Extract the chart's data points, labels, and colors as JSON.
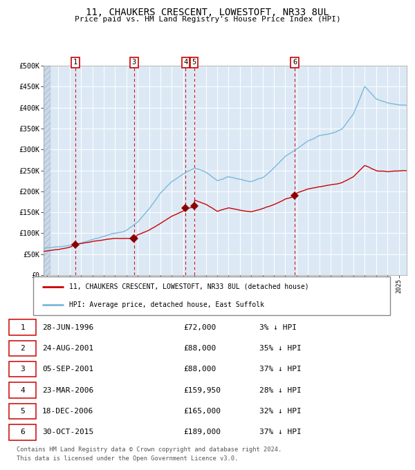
{
  "title": "11, CHAUKERS CRESCENT, LOWESTOFT, NR33 8UL",
  "subtitle": "Price paid vs. HM Land Registry's House Price Index (HPI)",
  "legend_line1": "11, CHAUKERS CRESCENT, LOWESTOFT, NR33 8UL (detached house)",
  "legend_line2": "HPI: Average price, detached house, East Suffolk",
  "footer1": "Contains HM Land Registry data © Crown copyright and database right 2024.",
  "footer2": "This data is licensed under the Open Government Licence v3.0.",
  "sales": [
    {
      "label": "1",
      "date_num": 1996.49,
      "price": 72000
    },
    {
      "label": "2",
      "date_num": 2001.64,
      "price": 88000
    },
    {
      "label": "3",
      "date_num": 2001.68,
      "price": 88000
    },
    {
      "label": "4",
      "date_num": 2006.22,
      "price": 159950
    },
    {
      "label": "5",
      "date_num": 2006.96,
      "price": 165000
    },
    {
      "label": "6",
      "date_num": 2015.83,
      "price": 189000
    }
  ],
  "vlines": [
    1996.49,
    2001.68,
    2006.22,
    2006.96,
    2015.83
  ],
  "table_sales": [
    {
      "label": "1",
      "date": "28-JUN-1996",
      "price": "£72,000",
      "pct": "3% ↓ HPI"
    },
    {
      "label": "2",
      "date": "24-AUG-2001",
      "price": "£88,000",
      "pct": "35% ↓ HPI"
    },
    {
      "label": "3",
      "date": "05-SEP-2001",
      "price": "£88,000",
      "pct": "37% ↓ HPI"
    },
    {
      "label": "4",
      "date": "23-MAR-2006",
      "price": "£159,950",
      "pct": "28% ↓ HPI"
    },
    {
      "label": "5",
      "date": "18-DEC-2006",
      "price": "£165,000",
      "pct": "32% ↓ HPI"
    },
    {
      "label": "6",
      "date": "30-OCT-2015",
      "price": "£189,000",
      "pct": "37% ↓ HPI"
    }
  ],
  "hpi_color": "#7ab8d9",
  "price_color": "#cc0000",
  "sale_marker_color": "#8b0000",
  "vline_color": "#cc0000",
  "background_color": "#dce9f5",
  "grid_color": "#ffffff",
  "ylim": [
    0,
    500000
  ],
  "xlim_start": 1993.7,
  "xlim_end": 2025.7,
  "hpi_key_years": [
    1993,
    1994,
    1995,
    1996,
    1997,
    1998,
    1999,
    2000,
    2001,
    2002,
    2003,
    2004,
    2005,
    2006,
    2007,
    2008,
    2009,
    2010,
    2011,
    2012,
    2013,
    2014,
    2015,
    2016,
    2017,
    2018,
    2019,
    2020,
    2021,
    2022,
    2023,
    2024,
    2025
  ],
  "hpi_key_vals": [
    63000,
    65000,
    68000,
    72000,
    78000,
    85000,
    92000,
    100000,
    108000,
    128000,
    160000,
    198000,
    225000,
    243000,
    258000,
    248000,
    228000,
    238000,
    233000,
    228000,
    238000,
    262000,
    291000,
    308000,
    328000,
    342000,
    348000,
    358000,
    392000,
    458000,
    428000,
    418000,
    415000
  ],
  "price_key_years": [
    1993,
    1994,
    1995,
    1996,
    1996.49,
    1997,
    1998,
    1999,
    2000,
    2001,
    2001.64,
    2001.7,
    2002,
    2003,
    2004,
    2005,
    2006,
    2006.22,
    2006.96,
    2007,
    2008,
    2009,
    2010,
    2011,
    2012,
    2013,
    2014,
    2015,
    2015.83,
    2016,
    2017,
    2018,
    2019,
    2020,
    2021,
    2022,
    2023,
    2024,
    2025
  ],
  "price_key_vals": [
    55000,
    57000,
    60000,
    65000,
    72000,
    74000,
    79000,
    84000,
    88000,
    88000,
    88000,
    88000,
    97000,
    108000,
    125000,
    143000,
    155000,
    159950,
    165000,
    181000,
    170000,
    153000,
    161000,
    156000,
    152000,
    159000,
    169000,
    183000,
    189000,
    197000,
    208000,
    214000,
    219000,
    224000,
    238000,
    265000,
    252000,
    249000,
    251000
  ]
}
